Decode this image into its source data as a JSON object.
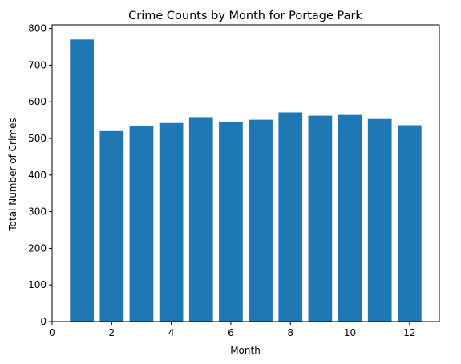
{
  "chart_data": {
    "type": "bar",
    "title": "Crime Counts by Month for Portage Park",
    "xlabel": "Month",
    "ylabel": "Total Number of Crimes",
    "categories": [
      1,
      2,
      3,
      4,
      5,
      6,
      7,
      8,
      9,
      10,
      11,
      12
    ],
    "values": [
      770,
      520,
      534,
      542,
      558,
      545,
      551,
      571,
      562,
      564,
      553,
      536
    ],
    "xlim": [
      0,
      13
    ],
    "ylim": [
      0,
      810
    ],
    "xticks": [
      0,
      2,
      4,
      6,
      8,
      10,
      12
    ],
    "yticks": [
      0,
      100,
      200,
      300,
      400,
      500,
      600,
      700,
      800
    ],
    "bar_color": "#1f77b4",
    "grid": false,
    "legend": "none"
  }
}
